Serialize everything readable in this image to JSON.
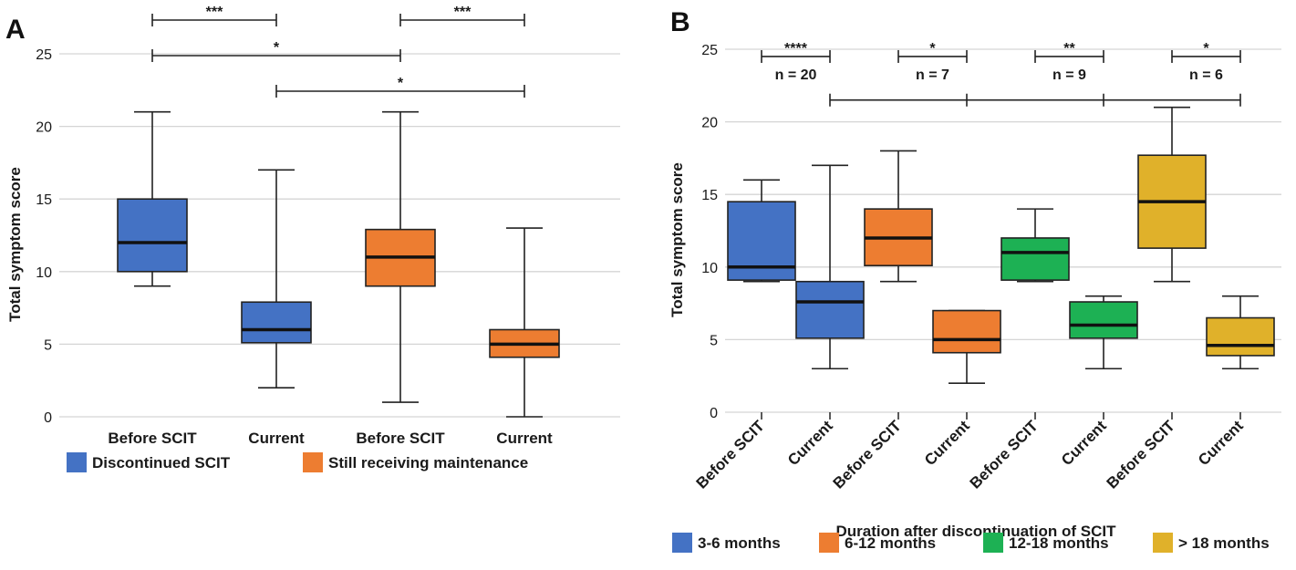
{
  "chart_data": [
    {
      "panel": "A",
      "type": "box",
      "xlabel": "",
      "ylabel": "Total symptom score",
      "ylim": [
        0,
        25
      ],
      "yticks": [
        0,
        5,
        10,
        15,
        20,
        25
      ],
      "grid": true,
      "categories": [
        "Before SCIT",
        "Current",
        "Before SCIT",
        "Current"
      ],
      "series": [
        {
          "name": "Discontinued SCIT",
          "color": "#4472C4",
          "boxes": [
            {
              "category_index": 0,
              "min": 9,
              "q1": 10,
              "median": 12,
              "q3": 15,
              "max": 21
            },
            {
              "category_index": 1,
              "min": 2,
              "q1": 5.1,
              "median": 6,
              "q3": 7.9,
              "max": 17
            }
          ]
        },
        {
          "name": "Still receiving maintenance",
          "color": "#ED7D31",
          "boxes": [
            {
              "category_index": 2,
              "min": 1,
              "q1": 9,
              "median": 11,
              "q3": 12.9,
              "max": 21
            },
            {
              "category_index": 3,
              "min": 0,
              "q1": 4.1,
              "median": 5,
              "q3": 6,
              "max": 13
            }
          ]
        }
      ],
      "significance": [
        {
          "from": 0,
          "to": 1,
          "label": "***",
          "level": 27.5
        },
        {
          "from": 2,
          "to": 3,
          "label": "***",
          "level": 27.5
        },
        {
          "from": 0,
          "to": 2,
          "label": "*",
          "level": 25
        },
        {
          "from": 1,
          "to": 3,
          "label": "*",
          "level": 22.7
        }
      ],
      "legend": [
        {
          "label": "Discontinued SCIT",
          "color": "#4472C4"
        },
        {
          "label": "Still receiving maintenance",
          "color": "#ED7D31"
        }
      ],
      "legend_position": "bottom"
    },
    {
      "panel": "B",
      "type": "box",
      "xlabel": "Duration after discontinuation of SCIT",
      "ylabel": "Total symptom score",
      "ylim": [
        0,
        25
      ],
      "yticks": [
        0,
        5,
        10,
        15,
        20,
        25
      ],
      "grid": true,
      "categories": [
        "Before SCIT",
        "Current",
        "Before SCIT",
        "Current",
        "Before SCIT",
        "Current",
        "Before SCIT",
        "Current"
      ],
      "series": [
        {
          "name": "3-6 months",
          "color": "#4472C4",
          "boxes": [
            {
              "category_index": 0,
              "min": 9,
              "q1": 9.1,
              "median": 10,
              "q3": 14.5,
              "max": 16
            },
            {
              "category_index": 1,
              "min": 3,
              "q1": 5.1,
              "median": 7.6,
              "q3": 9,
              "max": 17
            }
          ]
        },
        {
          "name": "6-12 months",
          "color": "#ED7D31",
          "boxes": [
            {
              "category_index": 2,
              "min": 9,
              "q1": 10.1,
              "median": 12,
              "q3": 14,
              "max": 18
            },
            {
              "category_index": 3,
              "min": 2,
              "q1": 4.1,
              "median": 5,
              "q3": 7,
              "max": 7
            }
          ]
        },
        {
          "name": "12-18 months",
          "color": "#1DB154",
          "boxes": [
            {
              "category_index": 4,
              "min": 9,
              "q1": 9.1,
              "median": 11,
              "q3": 12,
              "max": 14
            },
            {
              "category_index": 5,
              "min": 3,
              "q1": 5.1,
              "median": 6,
              "q3": 7.6,
              "max": 8
            }
          ]
        },
        {
          "name": "> 18 months",
          "color": "#E0B12A",
          "boxes": [
            {
              "category_index": 6,
              "min": 9,
              "q1": 11.3,
              "median": 14.5,
              "q3": 17.7,
              "max": 21
            },
            {
              "category_index": 7,
              "min": 3,
              "q1": 3.9,
              "median": 4.6,
              "q3": 6.5,
              "max": 8
            }
          ]
        }
      ],
      "significance": [
        {
          "from": 0,
          "to": 1,
          "label": "****",
          "n_label": "n = 20",
          "level": 24.5
        },
        {
          "from": 2,
          "to": 3,
          "label": "*",
          "n_label": "n = 7",
          "level": 24.5
        },
        {
          "from": 4,
          "to": 5,
          "label": "**",
          "n_label": "n = 9",
          "level": 24.5
        },
        {
          "from": 6,
          "to": 7,
          "label": "*",
          "n_label": "n = 6",
          "level": 24.5
        }
      ],
      "comparison_line": {
        "level": 21.5,
        "ticks_at": [
          1,
          3,
          5,
          7
        ]
      },
      "legend": [
        {
          "label": "3-6 months",
          "color": "#4472C4"
        },
        {
          "label": "6-12 months",
          "color": "#ED7D31"
        },
        {
          "label": "12-18 months",
          "color": "#1DB154"
        },
        {
          "label": "> 18 months",
          "color": "#E0B12A"
        }
      ],
      "legend_position": "bottom"
    }
  ]
}
